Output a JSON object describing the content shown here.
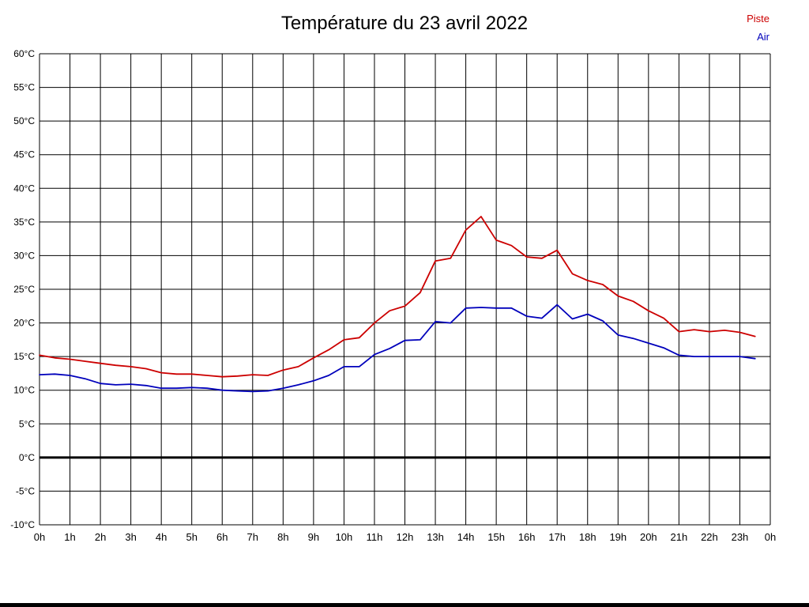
{
  "title": "Température du 23 avril 2022",
  "legend": [
    {
      "label": "Piste",
      "color": "#cc0000"
    },
    {
      "label": "Air",
      "color": "#0000bb"
    }
  ],
  "colors": {
    "grid": "#000000",
    "zero_line": "#000000",
    "text": "#000000",
    "background": "#ffffff"
  },
  "chart_data": {
    "type": "line",
    "title": "Température du 23 avril 2022",
    "xlabel": "",
    "ylabel": "",
    "grid": true,
    "legend_position": "top-right",
    "xlim": [
      0,
      24
    ],
    "ylim": [
      -10,
      60
    ],
    "ytick_step": 5,
    "zero_line": true,
    "xtick_labels": [
      "0h",
      "1h",
      "2h",
      "3h",
      "4h",
      "5h",
      "6h",
      "7h",
      "8h",
      "9h",
      "10h",
      "11h",
      "12h",
      "13h",
      "14h",
      "15h",
      "16h",
      "17h",
      "18h",
      "19h",
      "20h",
      "21h",
      "22h",
      "23h",
      "0h"
    ],
    "ytick_labels": [
      "-10°C",
      "-5°C",
      "0°C",
      "5°C",
      "10°C",
      "15°C",
      "20°C",
      "25°C",
      "30°C",
      "35°C",
      "40°C",
      "45°C",
      "50°C",
      "55°C",
      "60°C"
    ],
    "x": [
      0,
      0.5,
      1,
      1.5,
      2,
      2.5,
      3,
      3.5,
      4,
      4.5,
      5,
      5.5,
      6,
      6.5,
      7,
      7.5,
      8,
      8.5,
      9,
      9.5,
      10,
      10.5,
      11,
      11.5,
      12,
      12.5,
      13,
      13.5,
      14,
      14.5,
      15,
      15.5,
      16,
      16.5,
      17,
      17.5,
      18,
      18.5,
      19,
      19.5,
      20,
      20.5,
      21,
      21.5,
      22,
      22.5,
      23,
      23.5
    ],
    "series": [
      {
        "name": "Piste",
        "color": "#cc0000",
        "values": [
          15.2,
          14.8,
          14.6,
          14.3,
          14.0,
          13.7,
          13.5,
          13.2,
          12.6,
          12.4,
          12.4,
          12.2,
          12.0,
          12.1,
          12.3,
          12.2,
          13.0,
          13.5,
          14.8,
          16.0,
          17.5,
          17.8,
          20.0,
          21.8,
          22.5,
          24.5,
          29.2,
          29.6,
          33.8,
          35.8,
          32.3,
          31.5,
          29.8,
          29.6,
          30.8,
          27.3,
          26.3,
          25.7,
          24.0,
          23.2,
          21.8,
          20.7,
          18.7,
          19.0,
          18.7,
          18.9,
          18.6,
          18.0
        ]
      },
      {
        "name": "Air",
        "color": "#0000bb",
        "values": [
          12.3,
          12.4,
          12.2,
          11.7,
          11.0,
          10.8,
          10.9,
          10.7,
          10.3,
          10.3,
          10.4,
          10.3,
          10.0,
          9.9,
          9.8,
          9.9,
          10.3,
          10.8,
          11.4,
          12.2,
          13.5,
          13.5,
          15.3,
          16.2,
          17.4,
          17.5,
          20.2,
          20.0,
          22.2,
          22.3,
          22.2,
          22.2,
          21.0,
          20.7,
          22.7,
          20.6,
          21.3,
          20.3,
          18.2,
          17.7,
          17.0,
          16.3,
          15.2,
          15.0,
          15.0,
          15.0,
          15.0,
          14.7
        ]
      }
    ]
  }
}
